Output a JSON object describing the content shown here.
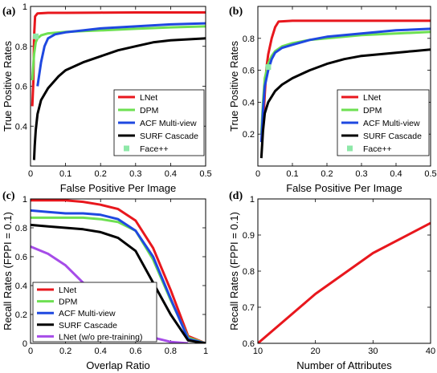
{
  "chart_data": [
    {
      "panel": "(a)",
      "type": "line",
      "xlabel": "False Positive Per Image",
      "ylabel": "True Positive Rates",
      "xlim": [
        0,
        0.5
      ],
      "ylim": [
        0.2,
        1.0
      ],
      "xticks": [
        "0",
        "0.1",
        "0.2",
        "0.3",
        "0.4",
        "0.5"
      ],
      "yticks": [
        "0.4",
        "0.6",
        "0.8",
        "1"
      ],
      "legend_position": "bottom-right",
      "series": [
        {
          "name": "LNet",
          "color": "#e8171d",
          "x": [
            0.005,
            0.008,
            0.01,
            0.013,
            0.02,
            0.05,
            0.1,
            0.2,
            0.3,
            0.4,
            0.5
          ],
          "y": [
            0.5,
            0.62,
            0.85,
            0.95,
            0.965,
            0.968,
            0.968,
            0.969,
            0.97,
            0.97,
            0.97
          ]
        },
        {
          "name": "DPM",
          "color": "#6ee052",
          "x": [
            0.005,
            0.01,
            0.015,
            0.02,
            0.03,
            0.05,
            0.1,
            0.15,
            0.2,
            0.3,
            0.4,
            0.5
          ],
          "y": [
            0.63,
            0.76,
            0.82,
            0.84,
            0.855,
            0.865,
            0.872,
            0.876,
            0.88,
            0.888,
            0.895,
            0.9
          ]
        },
        {
          "name": "ACF Multi-view",
          "color": "#1f48e0",
          "x": [
            0.02,
            0.03,
            0.04,
            0.05,
            0.07,
            0.1,
            0.15,
            0.2,
            0.3,
            0.4,
            0.5
          ],
          "y": [
            0.6,
            0.72,
            0.8,
            0.84,
            0.86,
            0.87,
            0.88,
            0.89,
            0.9,
            0.91,
            0.915
          ]
        },
        {
          "name": "SURF Cascade",
          "color": "#000000",
          "x": [
            0.01,
            0.012,
            0.015,
            0.02,
            0.03,
            0.05,
            0.08,
            0.1,
            0.15,
            0.2,
            0.25,
            0.3,
            0.35,
            0.4,
            0.5
          ],
          "y": [
            0.23,
            0.3,
            0.38,
            0.46,
            0.53,
            0.59,
            0.65,
            0.68,
            0.72,
            0.75,
            0.78,
            0.8,
            0.82,
            0.83,
            0.84
          ]
        },
        {
          "name": "Face++",
          "color": "#8ee8a8",
          "marker": "square",
          "x": [
            0.015
          ],
          "y": [
            0.85
          ]
        }
      ]
    },
    {
      "panel": "(b)",
      "type": "line",
      "xlabel": "False Positive Per Image",
      "ylabel": "True Positive Rates",
      "xlim": [
        0,
        0.5
      ],
      "ylim": [
        0,
        1.0
      ],
      "xticks": [
        "0",
        "0.1",
        "0.2",
        "0.3",
        "0.4",
        "0.5"
      ],
      "yticks": [
        "0.2",
        "0.4",
        "0.6",
        "0.8"
      ],
      "legend_position": "bottom-right",
      "series": [
        {
          "name": "LNet",
          "color": "#e8171d",
          "x": [
            0.015,
            0.02,
            0.025,
            0.03,
            0.04,
            0.05,
            0.06,
            0.1,
            0.2,
            0.3,
            0.4,
            0.5
          ],
          "y": [
            0.25,
            0.45,
            0.62,
            0.7,
            0.8,
            0.87,
            0.905,
            0.91,
            0.91,
            0.91,
            0.91,
            0.91
          ]
        },
        {
          "name": "DPM",
          "color": "#6ee052",
          "x": [
            0.01,
            0.015,
            0.02,
            0.03,
            0.04,
            0.05,
            0.07,
            0.1,
            0.15,
            0.2,
            0.3,
            0.4,
            0.5
          ],
          "y": [
            0.2,
            0.4,
            0.55,
            0.64,
            0.69,
            0.72,
            0.75,
            0.77,
            0.79,
            0.8,
            0.82,
            0.83,
            0.84
          ]
        },
        {
          "name": "ACF Multi-view",
          "color": "#1f48e0",
          "x": [
            0.01,
            0.015,
            0.02,
            0.03,
            0.04,
            0.05,
            0.07,
            0.1,
            0.15,
            0.2,
            0.3,
            0.4,
            0.5
          ],
          "y": [
            0.15,
            0.35,
            0.5,
            0.6,
            0.67,
            0.71,
            0.74,
            0.76,
            0.79,
            0.81,
            0.83,
            0.85,
            0.86
          ]
        },
        {
          "name": "SURF Cascade",
          "color": "#000000",
          "x": [
            0.01,
            0.015,
            0.02,
            0.03,
            0.05,
            0.07,
            0.1,
            0.15,
            0.2,
            0.25,
            0.3,
            0.35,
            0.4,
            0.45,
            0.5
          ],
          "y": [
            0.05,
            0.22,
            0.33,
            0.4,
            0.47,
            0.51,
            0.55,
            0.6,
            0.64,
            0.67,
            0.69,
            0.7,
            0.71,
            0.72,
            0.73
          ]
        },
        {
          "name": "Face++",
          "color": "#8ee8a8",
          "marker": "square",
          "x": [
            0.03
          ],
          "y": [
            0.62
          ]
        }
      ]
    },
    {
      "panel": "(c)",
      "type": "line",
      "xlabel": "Overlap Ratio",
      "ylabel": "Recall Rates (FPPI = 0.1)",
      "xlim": [
        0,
        1
      ],
      "ylim": [
        0,
        1
      ],
      "xticks": [
        "0",
        "0.2",
        "0.4",
        "0.6",
        "0.8",
        "1"
      ],
      "yticks": [
        "0",
        "0.2",
        "0.4",
        "0.6",
        "0.8",
        "1"
      ],
      "legend_position": "bottom-left",
      "series": [
        {
          "name": "LNet",
          "color": "#e8171d",
          "x": [
            0,
            0.1,
            0.2,
            0.3,
            0.4,
            0.5,
            0.6,
            0.7,
            0.8,
            0.9,
            1.0
          ],
          "y": [
            0.99,
            0.99,
            0.99,
            0.98,
            0.96,
            0.93,
            0.85,
            0.66,
            0.37,
            0.05,
            0.0
          ]
        },
        {
          "name": "DPM",
          "color": "#6ee052",
          "x": [
            0,
            0.1,
            0.2,
            0.3,
            0.4,
            0.5,
            0.6,
            0.7,
            0.8,
            0.9,
            1.0
          ],
          "y": [
            0.87,
            0.87,
            0.87,
            0.87,
            0.86,
            0.84,
            0.78,
            0.58,
            0.3,
            0.04,
            0.0
          ]
        },
        {
          "name": "ACF Multi-view",
          "color": "#1f48e0",
          "x": [
            0,
            0.1,
            0.2,
            0.3,
            0.4,
            0.5,
            0.6,
            0.7,
            0.8,
            0.9,
            1.0
          ],
          "y": [
            0.92,
            0.91,
            0.9,
            0.9,
            0.89,
            0.86,
            0.78,
            0.6,
            0.31,
            0.03,
            0.0
          ]
        },
        {
          "name": "SURF Cascade",
          "color": "#000000",
          "x": [
            0,
            0.1,
            0.2,
            0.3,
            0.4,
            0.5,
            0.6,
            0.7,
            0.8,
            0.9,
            1.0
          ],
          "y": [
            0.82,
            0.81,
            0.8,
            0.79,
            0.77,
            0.73,
            0.64,
            0.42,
            0.2,
            0.02,
            0.0
          ]
        },
        {
          "name": "LNet (w/o pre-training)",
          "color": "#a64ce8",
          "x": [
            0,
            0.1,
            0.2,
            0.3,
            0.4,
            0.5,
            0.6,
            0.7,
            0.8,
            0.9
          ],
          "y": [
            0.67,
            0.62,
            0.54,
            0.42,
            0.29,
            0.17,
            0.09,
            0.04,
            0.01,
            0.0
          ]
        }
      ]
    },
    {
      "panel": "(d)",
      "type": "line",
      "xlabel": "Number of Attributes",
      "ylabel": "Recall Rates (FPPI = 0.1)",
      "xlim": [
        10,
        40
      ],
      "ylim": [
        0.6,
        1.0
      ],
      "xticks": [
        "10",
        "20",
        "30",
        "40"
      ],
      "yticks": [
        "0.6",
        "0.7",
        "0.8",
        "0.9",
        "1"
      ],
      "series": [
        {
          "color": "#e8171d",
          "x": [
            10,
            20,
            30,
            40
          ],
          "y": [
            0.6,
            0.737,
            0.85,
            0.933
          ]
        }
      ]
    }
  ]
}
